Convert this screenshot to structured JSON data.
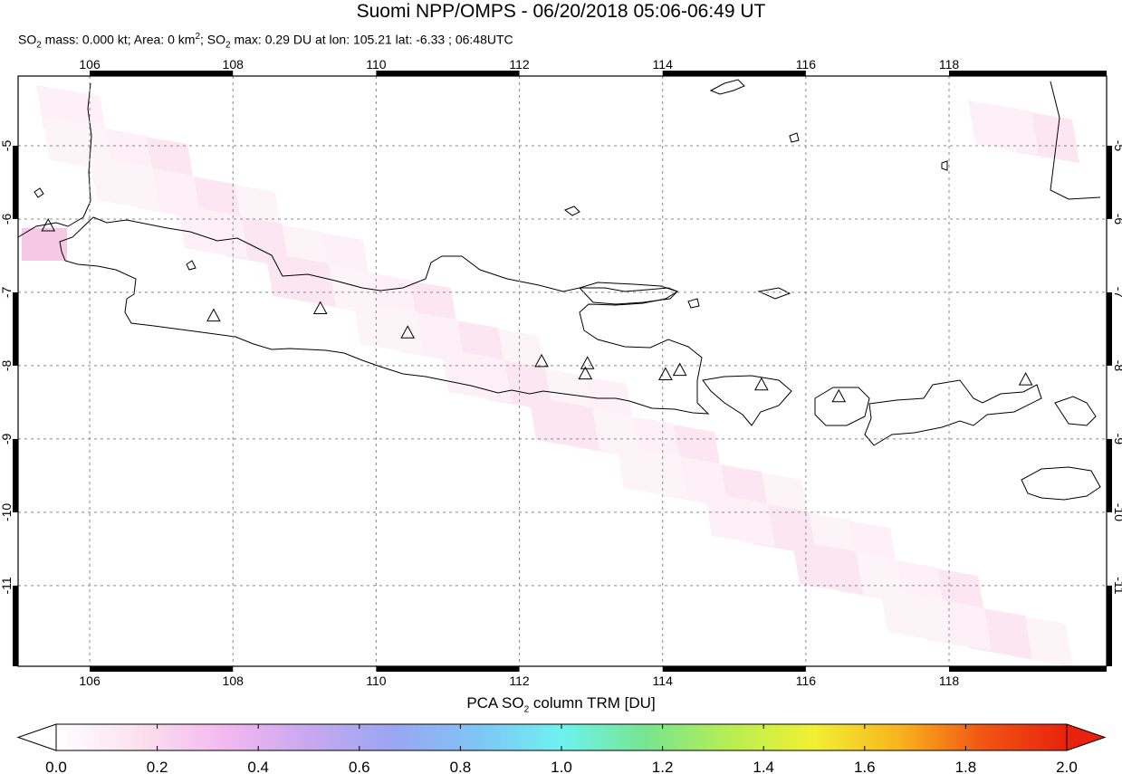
{
  "title": "Suomi NPP/OMPS - 06/20/2018 05:06-06:49 UT",
  "subtitle": {
    "so2_mass_prefix": "SO",
    "so2_mass_text": " mass: 0.000 kt; Area: 0 km",
    "area_sup": "2",
    "so2_max_prefix": "; SO",
    "so2_max_text": " max: 0.29 DU at lon: 105.21 lat: -6.33 ; 06:48UTC",
    "sub2": "2"
  },
  "chart_data": {
    "type": "heatmap",
    "title": "Suomi NPP/OMPS - 06/20/2018 05:06-06:49 UT",
    "xlim": [
      105.0,
      120.2
    ],
    "ylim": [
      -12.1,
      -4.05
    ],
    "x_ticks": [
      106,
      108,
      110,
      112,
      114,
      116,
      118
    ],
    "y_ticks": [
      -5,
      -6,
      -7,
      -8,
      -9,
      -10,
      -11
    ],
    "x_tick_labels": [
      "106",
      "108",
      "110",
      "112",
      "114",
      "116",
      "118"
    ],
    "y_tick_labels": [
      "-5",
      "-6",
      "-7",
      "-8",
      "-9",
      "-10",
      "-11"
    ],
    "grid": true,
    "volcanoes": [
      {
        "lon": 105.42,
        "lat": -6.1
      },
      {
        "lon": 107.73,
        "lat": -7.33
      },
      {
        "lon": 109.22,
        "lat": -7.23
      },
      {
        "lon": 110.44,
        "lat": -7.56
      },
      {
        "lon": 112.31,
        "lat": -7.95
      },
      {
        "lon": 112.95,
        "lat": -7.98
      },
      {
        "lon": 112.92,
        "lat": -8.12
      },
      {
        "lon": 114.04,
        "lat": -8.13
      },
      {
        "lon": 114.24,
        "lat": -8.07
      },
      {
        "lon": 115.38,
        "lat": -8.27
      },
      {
        "lon": 116.46,
        "lat": -8.43
      },
      {
        "lon": 119.07,
        "lat": -8.2
      }
    ],
    "colorbar": {
      "label_text": "PCA SO",
      "label_sub": "2",
      "label_rest": " column TRM [DU]",
      "min": 0.0,
      "max": 2.0,
      "tick_labels": [
        "0.0",
        "0.2",
        "0.4",
        "0.6",
        "0.8",
        "1.0",
        "1.2",
        "1.4",
        "1.6",
        "1.8",
        "2.0"
      ],
      "colors": [
        "#ffffff",
        "#fbe0ee",
        "#f4b8f0",
        "#c8a8f0",
        "#9aa6f2",
        "#7fc4f6",
        "#6ef2ef",
        "#77e58f",
        "#b7ee52",
        "#f2f032",
        "#f9b51d",
        "#f25513",
        "#e8220e"
      ]
    }
  }
}
